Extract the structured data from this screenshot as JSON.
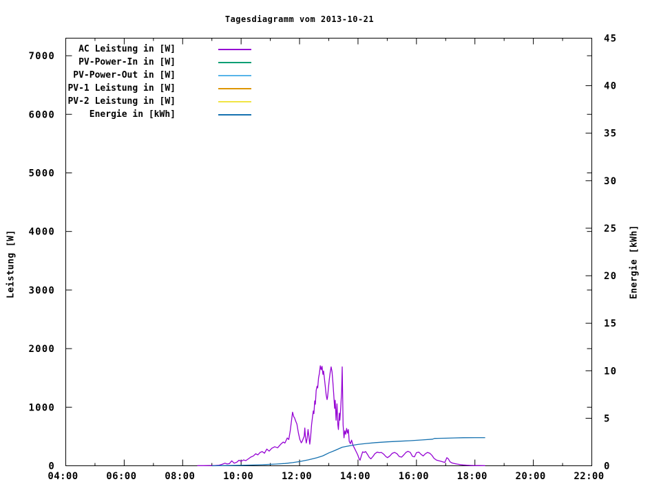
{
  "title": "Tagesdiagramm vom 2013-10-21",
  "chart_data": {
    "type": "line",
    "title": "Tagesdiagramm vom 2013-10-21",
    "grid": false,
    "legend_position": "top-left-inside",
    "x_axis": {
      "label": "",
      "range_hours": [
        4,
        22
      ],
      "major_ticks": [
        {
          "t": 4,
          "label": "04:00"
        },
        {
          "t": 6,
          "label": "06:00"
        },
        {
          "t": 8,
          "label": "08:00"
        },
        {
          "t": 10,
          "label": "10:00"
        },
        {
          "t": 12,
          "label": "12:00"
        },
        {
          "t": 14,
          "label": "14:00"
        },
        {
          "t": 16,
          "label": "16:00"
        },
        {
          "t": 18,
          "label": "18:00"
        },
        {
          "t": 20,
          "label": "20:00"
        },
        {
          "t": 22,
          "label": "22:00"
        }
      ],
      "minor_ticks": [
        5,
        7,
        9,
        11,
        13,
        15,
        17,
        19,
        21
      ]
    },
    "y_left": {
      "label": "Leistung [W]",
      "range": [
        0,
        7300
      ],
      "ticks": [
        {
          "v": 0,
          "label": "0"
        },
        {
          "v": 1000,
          "label": "1000"
        },
        {
          "v": 2000,
          "label": "2000"
        },
        {
          "v": 3000,
          "label": "3000"
        },
        {
          "v": 4000,
          "label": "4000"
        },
        {
          "v": 5000,
          "label": "5000"
        },
        {
          "v": 6000,
          "label": "6000"
        },
        {
          "v": 7000,
          "label": "7000"
        }
      ]
    },
    "y_right": {
      "label": "Energie [kWh]",
      "range": [
        0,
        45
      ],
      "ticks": [
        {
          "v": 0,
          "label": "0"
        },
        {
          "v": 5,
          "label": "5"
        },
        {
          "v": 10,
          "label": "10"
        },
        {
          "v": 15,
          "label": "15"
        },
        {
          "v": 20,
          "label": "20"
        },
        {
          "v": 25,
          "label": "25"
        },
        {
          "v": 30,
          "label": "30"
        },
        {
          "v": 35,
          "label": "35"
        },
        {
          "v": 40,
          "label": "40"
        },
        {
          "v": 45,
          "label": "45"
        }
      ]
    },
    "series": [
      {
        "name": "AC Leistung in [W]",
        "color": "#9400D3",
        "axis": "left",
        "points": [
          [
            8.5,
            2
          ],
          [
            8.7,
            2
          ],
          [
            8.9,
            3
          ],
          [
            9.1,
            5
          ],
          [
            9.25,
            10
          ],
          [
            9.35,
            25
          ],
          [
            9.45,
            45
          ],
          [
            9.52,
            30
          ],
          [
            9.6,
            38
          ],
          [
            9.68,
            85
          ],
          [
            9.76,
            45
          ],
          [
            9.85,
            60
          ],
          [
            9.93,
            95
          ],
          [
            10.0,
            75
          ],
          [
            10.08,
            100
          ],
          [
            10.16,
            88
          ],
          [
            10.25,
            118
          ],
          [
            10.33,
            148
          ],
          [
            10.42,
            168
          ],
          [
            10.5,
            205
          ],
          [
            10.57,
            185
          ],
          [
            10.65,
            228
          ],
          [
            10.72,
            243
          ],
          [
            10.8,
            215
          ],
          [
            10.88,
            285
          ],
          [
            10.96,
            250
          ],
          [
            11.05,
            298
          ],
          [
            11.15,
            325
          ],
          [
            11.25,
            308
          ],
          [
            11.35,
            365
          ],
          [
            11.44,
            405
          ],
          [
            11.5,
            388
          ],
          [
            11.58,
            475
          ],
          [
            11.63,
            448
          ],
          [
            11.68,
            595
          ],
          [
            11.72,
            755
          ],
          [
            11.76,
            915
          ],
          [
            11.8,
            838
          ],
          [
            11.83,
            818
          ],
          [
            11.87,
            762
          ],
          [
            11.91,
            712
          ],
          [
            11.96,
            560
          ],
          [
            12.01,
            448
          ],
          [
            12.06,
            392
          ],
          [
            12.09,
            418
          ],
          [
            12.13,
            470
          ],
          [
            12.16,
            505
          ],
          [
            12.18,
            645
          ],
          [
            12.2,
            505
          ],
          [
            12.23,
            388
          ],
          [
            12.26,
            470
          ],
          [
            12.29,
            618
          ],
          [
            12.32,
            505
          ],
          [
            12.35,
            368
          ],
          [
            12.38,
            505
          ],
          [
            12.41,
            700
          ],
          [
            12.44,
            818
          ],
          [
            12.47,
            935
          ],
          [
            12.49,
            890
          ],
          [
            12.52,
            1108
          ],
          [
            12.54,
            1050
          ],
          [
            12.57,
            1288
          ],
          [
            12.6,
            1358
          ],
          [
            12.62,
            1330
          ],
          [
            12.65,
            1498
          ],
          [
            12.68,
            1578
          ],
          [
            12.71,
            1708
          ],
          [
            12.74,
            1640
          ],
          [
            12.77,
            1698
          ],
          [
            12.8,
            1560
          ],
          [
            12.82,
            1618
          ],
          [
            12.85,
            1498
          ],
          [
            12.88,
            1358
          ],
          [
            12.91,
            1210
          ],
          [
            12.94,
            1130
          ],
          [
            12.96,
            1180
          ],
          [
            12.99,
            1340
          ],
          [
            13.02,
            1478
          ],
          [
            13.05,
            1598
          ],
          [
            13.08,
            1688
          ],
          [
            13.11,
            1608
          ],
          [
            13.14,
            1438
          ],
          [
            13.17,
            1218
          ],
          [
            13.2,
            980
          ],
          [
            13.22,
            1118
          ],
          [
            13.25,
            778
          ],
          [
            13.28,
            1058
          ],
          [
            13.31,
            698
          ],
          [
            13.33,
            618
          ],
          [
            13.36,
            898
          ],
          [
            13.38,
            778
          ],
          [
            13.41,
            998
          ],
          [
            13.44,
            1278
          ],
          [
            13.46,
            1688
          ],
          [
            13.49,
            698
          ],
          [
            13.52,
            478
          ],
          [
            13.55,
            598
          ],
          [
            13.58,
            538
          ],
          [
            13.61,
            638
          ],
          [
            13.64,
            558
          ],
          [
            13.67,
            618
          ],
          [
            13.7,
            418
          ],
          [
            13.74,
            378
          ],
          [
            13.78,
            438
          ],
          [
            13.83,
            348
          ],
          [
            13.88,
            298
          ],
          [
            13.93,
            248
          ],
          [
            13.99,
            188
          ],
          [
            14.04,
            118
          ],
          [
            14.07,
            95
          ],
          [
            14.12,
            178
          ],
          [
            14.16,
            238
          ],
          [
            14.21,
            228
          ],
          [
            14.26,
            243
          ],
          [
            14.32,
            198
          ],
          [
            14.38,
            148
          ],
          [
            14.44,
            118
          ],
          [
            14.51,
            158
          ],
          [
            14.58,
            208
          ],
          [
            14.66,
            233
          ],
          [
            14.73,
            223
          ],
          [
            14.8,
            228
          ],
          [
            14.88,
            198
          ],
          [
            14.95,
            158
          ],
          [
            15.01,
            138
          ],
          [
            15.09,
            168
          ],
          [
            15.17,
            213
          ],
          [
            15.25,
            228
          ],
          [
            15.33,
            208
          ],
          [
            15.41,
            158
          ],
          [
            15.49,
            148
          ],
          [
            15.57,
            188
          ],
          [
            15.64,
            228
          ],
          [
            15.71,
            248
          ],
          [
            15.79,
            228
          ],
          [
            15.86,
            163
          ],
          [
            15.93,
            153
          ],
          [
            16.0,
            223
          ],
          [
            16.08,
            233
          ],
          [
            16.15,
            198
          ],
          [
            16.23,
            168
          ],
          [
            16.31,
            208
          ],
          [
            16.38,
            228
          ],
          [
            16.46,
            213
          ],
          [
            16.53,
            178
          ],
          [
            16.6,
            128
          ],
          [
            16.68,
            98
          ],
          [
            16.75,
            88
          ],
          [
            16.83,
            78
          ],
          [
            16.9,
            68
          ],
          [
            16.97,
            58
          ],
          [
            17.04,
            138
          ],
          [
            17.09,
            118
          ],
          [
            17.15,
            68
          ],
          [
            17.22,
            48
          ],
          [
            17.3,
            38
          ],
          [
            17.4,
            28
          ],
          [
            17.5,
            20
          ],
          [
            17.6,
            14
          ],
          [
            17.72,
            9
          ],
          [
            17.85,
            6
          ],
          [
            18.0,
            4
          ],
          [
            18.15,
            3
          ],
          [
            18.35,
            2
          ]
        ]
      },
      {
        "name": "PV-Power-In in [W]",
        "color": "#009E73",
        "axis": "left",
        "points": []
      },
      {
        "name": "PV-Power-Out in [W]",
        "color": "#56B4E9",
        "axis": "left",
        "points": []
      },
      {
        "name": "PV-1 Leistung in [W]",
        "color": "#DD9500",
        "axis": "left",
        "points": []
      },
      {
        "name": "PV-2 Leistung in [W]",
        "color": "#F0E442",
        "axis": "left",
        "points": []
      },
      {
        "name": "Energie in [kWh]",
        "color": "#1470AF",
        "axis": "right",
        "points": [
          [
            9.0,
            0.0
          ],
          [
            9.5,
            0.02
          ],
          [
            10.0,
            0.05
          ],
          [
            10.4,
            0.08
          ],
          [
            10.8,
            0.12
          ],
          [
            11.2,
            0.18
          ],
          [
            11.5,
            0.24
          ],
          [
            11.76,
            0.33
          ],
          [
            12.0,
            0.44
          ],
          [
            12.3,
            0.62
          ],
          [
            12.6,
            0.85
          ],
          [
            12.8,
            1.05
          ],
          [
            13.0,
            1.35
          ],
          [
            13.2,
            1.6
          ],
          [
            13.46,
            1.95
          ],
          [
            13.7,
            2.1
          ],
          [
            14.0,
            2.25
          ],
          [
            14.3,
            2.35
          ],
          [
            14.6,
            2.44
          ],
          [
            15.0,
            2.52
          ],
          [
            15.4,
            2.58
          ],
          [
            15.8,
            2.64
          ],
          [
            16.2,
            2.72
          ],
          [
            16.55,
            2.8
          ],
          [
            16.62,
            2.88
          ],
          [
            17.0,
            2.9
          ],
          [
            17.3,
            2.93
          ],
          [
            17.6,
            2.95
          ],
          [
            18.0,
            2.96
          ],
          [
            18.35,
            2.96
          ]
        ]
      }
    ]
  }
}
